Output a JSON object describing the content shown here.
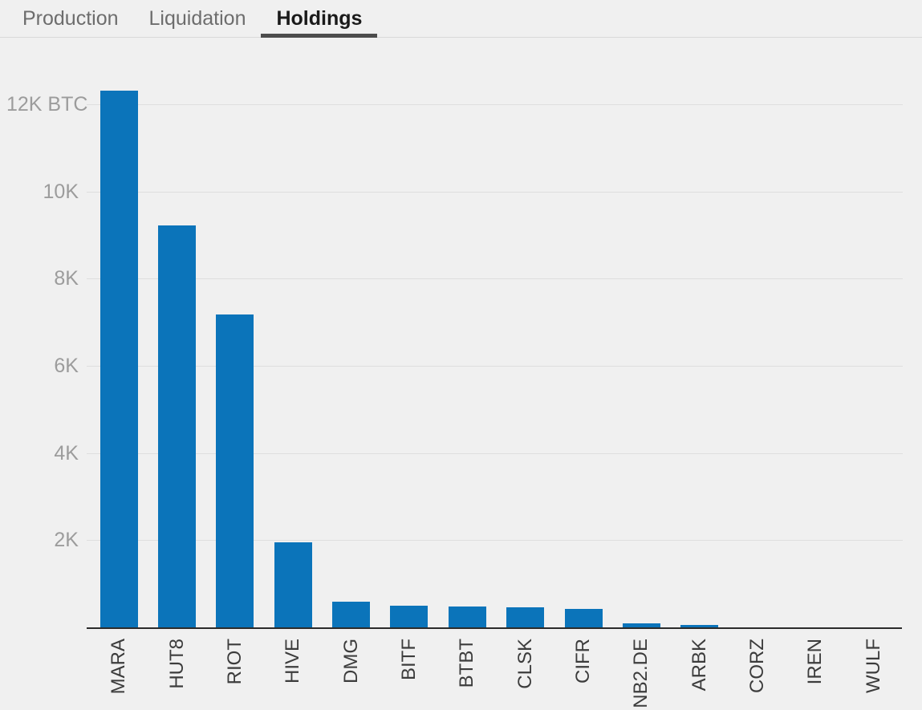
{
  "tabs": [
    {
      "label": "Production",
      "active": false
    },
    {
      "label": "Liquidation",
      "active": false
    },
    {
      "label": "Holdings",
      "active": true
    }
  ],
  "chart_data": {
    "type": "bar",
    "title": "Holdings",
    "unit": "BTC",
    "categories": [
      "MARA",
      "HUT8",
      "RIOT",
      "HIVE",
      "DMG",
      "BITF",
      "BTBT",
      "CLSK",
      "CIFR",
      "NB2.DE",
      "ARBK",
      "CORZ",
      "IREN",
      "WULF"
    ],
    "values": [
      12310,
      9230,
      7170,
      1950,
      590,
      500,
      480,
      460,
      420,
      90,
      55,
      0,
      0,
      0
    ],
    "xlabel": "",
    "ylabel": "BTC",
    "ylim": [
      0,
      12750
    ],
    "yticks": [
      {
        "value": 2000,
        "label": "2K"
      },
      {
        "value": 4000,
        "label": "4K"
      },
      {
        "value": 6000,
        "label": "6K"
      },
      {
        "value": 8000,
        "label": "8K"
      },
      {
        "value": 10000,
        "label": "10K"
      },
      {
        "value": 12000,
        "label": "12K BTC"
      }
    ],
    "grid": true,
    "legend": false,
    "bar_color": "#0b74ba"
  },
  "colors": {
    "background": "#f0f0f0",
    "bar": "#0b74ba",
    "gridline": "#dedede",
    "axis_line": "#2b2b2b",
    "y_label": "#9c9c9c",
    "x_label": "#3c3c3c",
    "tab_inactive": "#6d6d6d",
    "tab_active": "#1a1a1a",
    "tab_underline": "#4c4c4c"
  }
}
